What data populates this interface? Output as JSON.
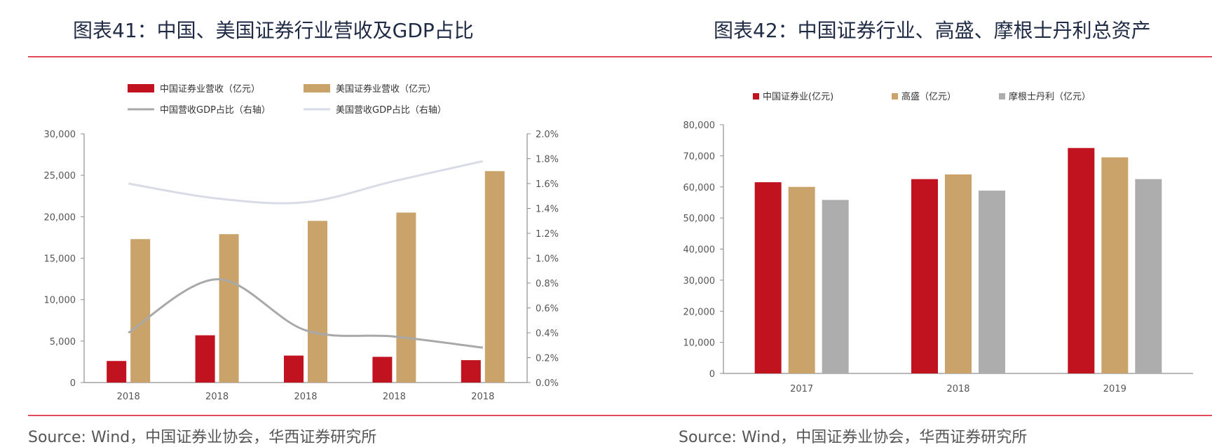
{
  "panel1": {
    "title": "图表41：中国、美国证券行业营收及GDP占比",
    "source": "Source: Wind，中国证券业协会，华西证券研究所"
  },
  "panel2": {
    "title": "图表42：中国证券行业、高盛、摩根士丹利总资产",
    "source": "Source: Wind，中国证券业协会，华西证券研究所"
  },
  "colors": {
    "china_red": "#c1121f",
    "us_gold": "#c9a36a",
    "gray_bar": "#adadad",
    "china_line": "#a9a9a9",
    "us_line": "#d9dbe6",
    "rule": "#e24a5a"
  },
  "chart_data": [
    {
      "type": "bar",
      "categories": [
        "2018",
        "2018",
        "2018",
        "2018",
        "2018"
      ],
      "series": [
        {
          "name": "中国证券业营收（亿元）",
          "values": [
            2600,
            5700,
            3250,
            3100,
            2700
          ],
          "axis": "left"
        },
        {
          "name": "美国证券业营收（亿元）",
          "values": [
            17300,
            17900,
            19500,
            20500,
            25500
          ],
          "axis": "left"
        },
        {
          "name": "中国营收GDP占比（右轴）",
          "type": "line",
          "values": [
            0.4,
            0.83,
            0.42,
            0.37,
            0.28
          ],
          "axis": "right"
        },
        {
          "name": "美国营收GDP占比（右轴）",
          "type": "line",
          "values": [
            1.6,
            1.48,
            1.45,
            1.62,
            1.78
          ],
          "axis": "right"
        }
      ],
      "ylim": [
        0,
        30000
      ],
      "y_ticks": [
        "0",
        "5,000",
        "10,000",
        "15,000",
        "20,000",
        "25,000",
        "30,000"
      ],
      "y2lim": [
        0,
        2.0
      ],
      "y2_ticks": [
        "0.0%",
        "0.2%",
        "0.4%",
        "0.6%",
        "0.8%",
        "1.0%",
        "1.2%",
        "1.4%",
        "1.6%",
        "1.8%",
        "2.0%"
      ],
      "legend_position": "top"
    },
    {
      "type": "bar",
      "categories": [
        "2017",
        "2018",
        "2019"
      ],
      "series": [
        {
          "name": "中国证券业(亿元)",
          "values": [
            61500,
            62500,
            72500
          ]
        },
        {
          "name": "高盛（亿元）",
          "values": [
            60000,
            64000,
            69500
          ]
        },
        {
          "name": "摩根士丹利（亿元）",
          "values": [
            55800,
            58800,
            62500
          ]
        }
      ],
      "ylim": [
        0,
        80000
      ],
      "y_ticks": [
        "0",
        "10,000",
        "20,000",
        "30,000",
        "40,000",
        "50,000",
        "60,000",
        "70,000",
        "80,000"
      ],
      "legend_position": "top"
    }
  ]
}
